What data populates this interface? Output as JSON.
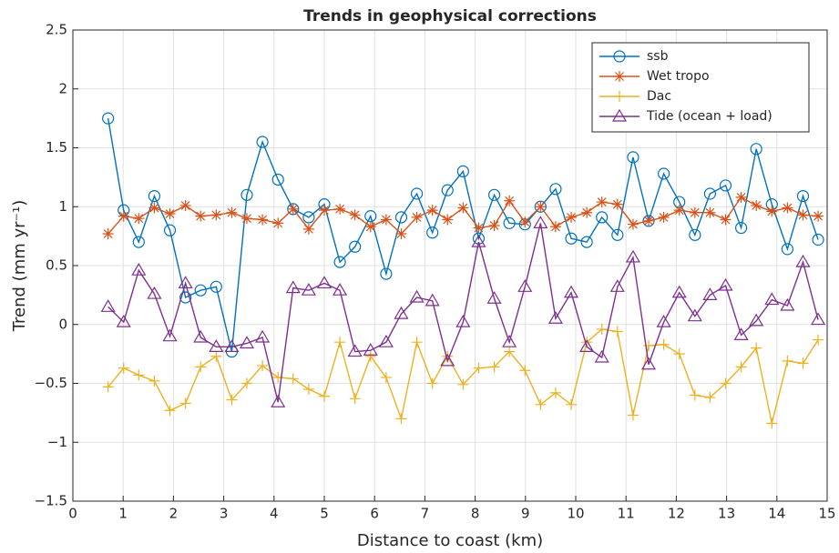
{
  "chart_data": {
    "type": "line",
    "title": "Trends in geophysical corrections",
    "xlabel": "Distance to coast (km)",
    "ylabel": "Trend (mm yr⁻¹)",
    "x": [
      0.7,
      1.01,
      1.31,
      1.62,
      1.93,
      2.24,
      2.54,
      2.85,
      3.16,
      3.46,
      3.77,
      4.08,
      4.38,
      4.69,
      5.0,
      5.31,
      5.61,
      5.92,
      6.23,
      6.53,
      6.84,
      7.15,
      7.45,
      7.76,
      8.07,
      8.38,
      8.68,
      8.99,
      9.3,
      9.6,
      9.91,
      10.22,
      10.52,
      10.83,
      11.14,
      11.45,
      11.75,
      12.06,
      12.37,
      12.67,
      12.98,
      13.29,
      13.59,
      13.9,
      14.21,
      14.52,
      14.82
    ],
    "series": [
      {
        "name": "ssb",
        "color": "#0072BD",
        "marker": "circle",
        "values": [
          1.75,
          0.97,
          0.7,
          1.09,
          0.8,
          0.23,
          0.29,
          0.32,
          -0.23,
          1.1,
          1.55,
          1.23,
          0.98,
          0.91,
          1.02,
          0.53,
          0.66,
          0.92,
          0.43,
          0.91,
          1.11,
          0.78,
          1.14,
          1.3,
          0.73,
          1.1,
          0.86,
          0.85,
          1.0,
          1.15,
          0.73,
          0.7,
          0.91,
          0.76,
          1.42,
          0.88,
          1.28,
          1.04,
          0.76,
          1.11,
          1.18,
          0.82,
          1.49,
          1.02,
          0.64,
          1.09,
          0.72
        ]
      },
      {
        "name": "Wet tropo",
        "color": "#D95319",
        "marker": "asterisk",
        "values": [
          0.77,
          0.92,
          0.9,
          0.99,
          0.94,
          1.01,
          0.92,
          0.93,
          0.95,
          0.9,
          0.89,
          0.86,
          0.98,
          0.81,
          0.97,
          0.98,
          0.93,
          0.83,
          0.89,
          0.77,
          0.91,
          0.97,
          0.89,
          0.99,
          0.82,
          0.84,
          1.05,
          0.87,
          1.0,
          0.83,
          0.91,
          0.95,
          1.04,
          1.02,
          0.85,
          0.88,
          0.91,
          0.97,
          0.95,
          0.95,
          0.89,
          1.08,
          1.01,
          0.96,
          0.99,
          0.93,
          0.92
        ]
      },
      {
        "name": "Dac",
        "color": "#EDB120",
        "marker": "plus",
        "values": [
          -0.53,
          -0.37,
          -0.43,
          -0.48,
          -0.73,
          -0.67,
          -0.36,
          -0.27,
          -0.64,
          -0.5,
          -0.35,
          -0.45,
          -0.46,
          -0.55,
          -0.61,
          -0.15,
          -0.63,
          -0.27,
          -0.45,
          -0.8,
          -0.15,
          -0.5,
          -0.27,
          -0.51,
          -0.37,
          -0.36,
          -0.23,
          -0.39,
          -0.68,
          -0.58,
          -0.68,
          -0.15,
          -0.04,
          -0.06,
          -0.77,
          -0.18,
          -0.17,
          -0.25,
          -0.6,
          -0.62,
          -0.5,
          -0.36,
          -0.2,
          -0.84,
          -0.31,
          -0.33,
          -0.13
        ]
      },
      {
        "name": "Tide (ocean + load)",
        "color": "#7E2F8E",
        "marker": "triangle",
        "values": [
          0.15,
          0.02,
          0.46,
          0.26,
          -0.1,
          0.35,
          -0.11,
          -0.19,
          -0.19,
          -0.16,
          -0.11,
          -0.66,
          0.31,
          0.29,
          0.35,
          0.29,
          -0.23,
          -0.22,
          -0.15,
          0.09,
          0.23,
          0.2,
          -0.31,
          0.02,
          0.7,
          0.22,
          -0.15,
          0.32,
          0.86,
          0.05,
          0.27,
          -0.19,
          -0.28,
          0.32,
          0.57,
          -0.34,
          0.02,
          0.27,
          0.07,
          0.25,
          0.33,
          -0.09,
          0.03,
          0.21,
          0.16,
          0.53,
          0.04
        ]
      }
    ],
    "xlim": [
      0,
      15
    ],
    "xticks": [
      0,
      1,
      2,
      3,
      4,
      5,
      6,
      7,
      8,
      9,
      10,
      11,
      12,
      13,
      14,
      15
    ],
    "ylim": [
      -1.5,
      2.5
    ],
    "yticks": [
      {
        "value": -1.5,
        "label": "−1.5"
      },
      {
        "value": -1,
        "label": "−1"
      },
      {
        "value": -0.5,
        "label": "−0.5"
      },
      0,
      0.5,
      1,
      1.5,
      2,
      2.5
    ],
    "grid": true,
    "legend": "top-right"
  }
}
